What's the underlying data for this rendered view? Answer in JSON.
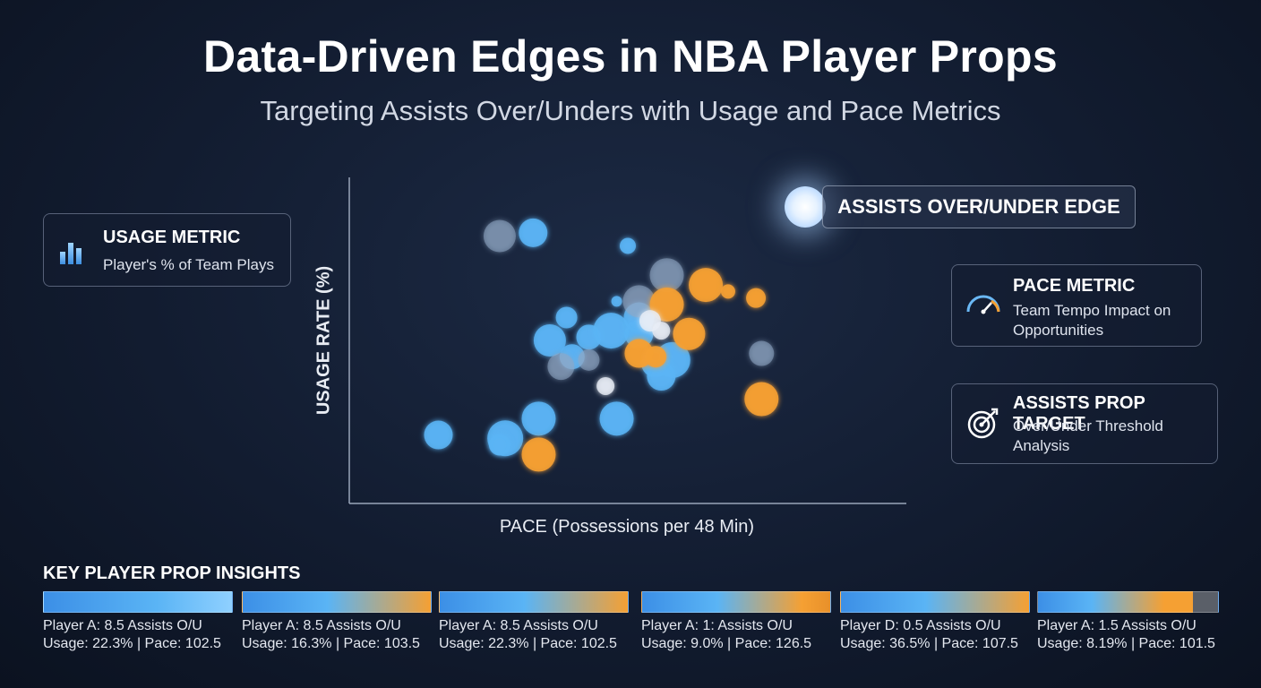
{
  "header": {
    "title": "Data-Driven Edges in NBA Player Props",
    "subtitle": "Targeting Assists Over/Unders with Usage and Pace Metrics"
  },
  "cards": {
    "usage": {
      "title": "USAGE METRIC",
      "desc": "Player's % of Team Plays",
      "icon": "bar-chart-icon"
    },
    "pace": {
      "title": "PACE METRIC",
      "desc_lines": [
        "Team Tempo Impact on",
        "Opportunities"
      ],
      "icon": "speedometer-icon"
    },
    "prop": {
      "title": "ASSISTS PROP TARGET",
      "desc_lines": [
        "Over/Under Threshold",
        "Analysis"
      ],
      "icon": "target-icon"
    }
  },
  "edge_label": "ASSISTS OVER/UNDER EDGE",
  "colors": {
    "blue": "#5ab4f5",
    "orange": "#f5a033",
    "gray_blue": "#8fa8c4",
    "white": "#e8eef6"
  },
  "chart_data": {
    "type": "scatter",
    "xlabel": "PACE (Possessions per 48 Min)",
    "ylabel": "USAGE RATE (%)",
    "grid": false,
    "xlim": [
      0,
      100
    ],
    "ylim": [
      0,
      100
    ],
    "series": [
      {
        "color": "blue",
        "points": [
          {
            "x": 33,
            "y": 83,
            "r": 16
          },
          {
            "x": 50,
            "y": 79,
            "r": 9
          },
          {
            "x": 39,
            "y": 57,
            "r": 12
          },
          {
            "x": 36,
            "y": 50,
            "r": 18
          },
          {
            "x": 43,
            "y": 51,
            "r": 14
          },
          {
            "x": 47,
            "y": 53,
            "r": 20
          },
          {
            "x": 52,
            "y": 52,
            "r": 16
          },
          {
            "x": 55,
            "y": 43,
            "r": 16
          },
          {
            "x": 58,
            "y": 44,
            "r": 20
          },
          {
            "x": 56,
            "y": 39,
            "r": 16
          },
          {
            "x": 34,
            "y": 26,
            "r": 19
          },
          {
            "x": 28,
            "y": 20,
            "r": 20
          },
          {
            "x": 16,
            "y": 21,
            "r": 16
          },
          {
            "x": 48,
            "y": 26,
            "r": 19
          },
          {
            "x": 27,
            "y": 18,
            "r": 12
          },
          {
            "x": 48,
            "y": 62,
            "r": 6
          },
          {
            "x": 40,
            "y": 45,
            "r": 14
          },
          {
            "x": 52,
            "y": 57,
            "r": 17
          }
        ]
      },
      {
        "color": "gray_blue",
        "points": [
          {
            "x": 27,
            "y": 82,
            "r": 18
          },
          {
            "x": 57,
            "y": 70,
            "r": 19
          },
          {
            "x": 52,
            "y": 62,
            "r": 18
          },
          {
            "x": 74,
            "y": 46,
            "r": 14
          },
          {
            "x": 38,
            "y": 42,
            "r": 15
          },
          {
            "x": 43,
            "y": 44,
            "r": 12
          }
        ]
      },
      {
        "color": "orange",
        "points": [
          {
            "x": 64,
            "y": 67,
            "r": 19
          },
          {
            "x": 57,
            "y": 61,
            "r": 19
          },
          {
            "x": 68,
            "y": 65,
            "r": 8
          },
          {
            "x": 73,
            "y": 63,
            "r": 11
          },
          {
            "x": 61,
            "y": 52,
            "r": 18
          },
          {
            "x": 52,
            "y": 46,
            "r": 16
          },
          {
            "x": 55,
            "y": 45,
            "r": 12
          },
          {
            "x": 74,
            "y": 32,
            "r": 19
          },
          {
            "x": 34,
            "y": 15,
            "r": 19
          }
        ]
      },
      {
        "color": "white",
        "points": [
          {
            "x": 54,
            "y": 56,
            "r": 12
          },
          {
            "x": 56,
            "y": 53,
            "r": 10
          },
          {
            "x": 46,
            "y": 36,
            "r": 10
          }
        ]
      }
    ]
  },
  "insights": {
    "title": "KEY PLAYER PROP INSIGHTS",
    "items": [
      {
        "line1": "Player A: 8.5 Assists O/U",
        "line2": "Usage: 22.3% | Pace: 102.5",
        "style": "blue"
      },
      {
        "line1": "Player A: 8.5 Assists O/U",
        "line2": "Usage: 16.3% | Pace: 103.5",
        "style": "blue-orange"
      },
      {
        "line1": "Player A: 8.5 Assists O/U",
        "line2": "Usage: 22.3% | Pace: 102.5",
        "style": "blue-orange"
      },
      {
        "line1": "Player A: 1: Assists O/U",
        "line2": "Usage: 9.0% | Pace: 126.5",
        "style": "blue-orange-dark"
      },
      {
        "line1": "Player D: 0.5 Assists O/U",
        "line2": "Usage: 36.5% | Pace: 107.5",
        "style": "blue-orange"
      },
      {
        "line1": "Player A: 1.5 Assists O/U",
        "line2": "Usage: 8.19% | Pace: 101.5",
        "style": "blue-orange-gray"
      }
    ]
  }
}
